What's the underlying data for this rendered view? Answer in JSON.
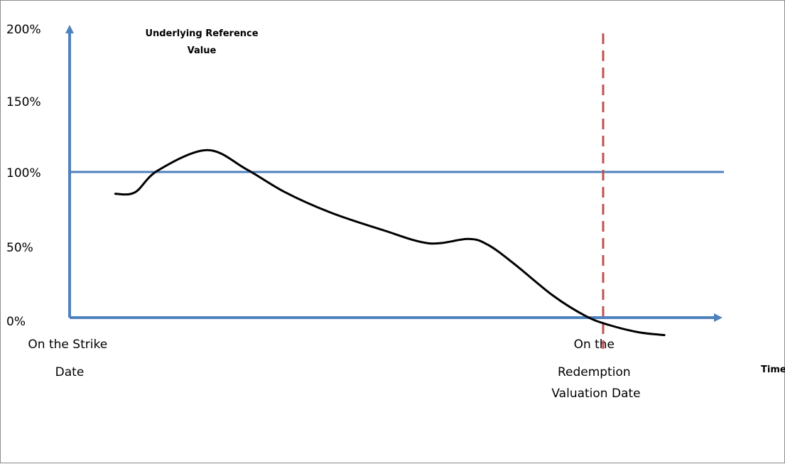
{
  "chart_data": {
    "type": "line",
    "ylabel": "Underlying Reference Value",
    "xlabel": "Time",
    "y_ticks": [
      "200%",
      "150%",
      "100%",
      "50%",
      "0%"
    ],
    "y_tick_values": [
      200,
      150,
      100,
      50,
      0
    ],
    "ylim": [
      0,
      200
    ],
    "x_labels": [
      {
        "lines": [
          "On the Strike",
          "Date"
        ]
      },
      {
        "lines": [
          "On the",
          "Redemption",
          "Valuation Date"
        ]
      }
    ],
    "barrier_level": 100,
    "valuation_date_marker": true,
    "series": [
      {
        "x": [
          0.07,
          0.1,
          0.135,
          0.21,
          0.27,
          0.33,
          0.4,
          0.48,
          0.55,
          0.61,
          0.64,
          0.68,
          0.74,
          0.79,
          0.825,
          0.87,
          0.91
        ],
        "values": [
          85,
          86,
          101,
          115,
          102,
          86,
          72,
          60,
          51,
          54,
          50,
          37,
          15,
          1,
          -5,
          -10,
          -12
        ]
      }
    ],
    "colors": {
      "axis": "#4F81BD",
      "barrier_line": "#4F81BD",
      "valuation_marker": "#C0504D",
      "series": "#000000"
    },
    "grid": false
  }
}
